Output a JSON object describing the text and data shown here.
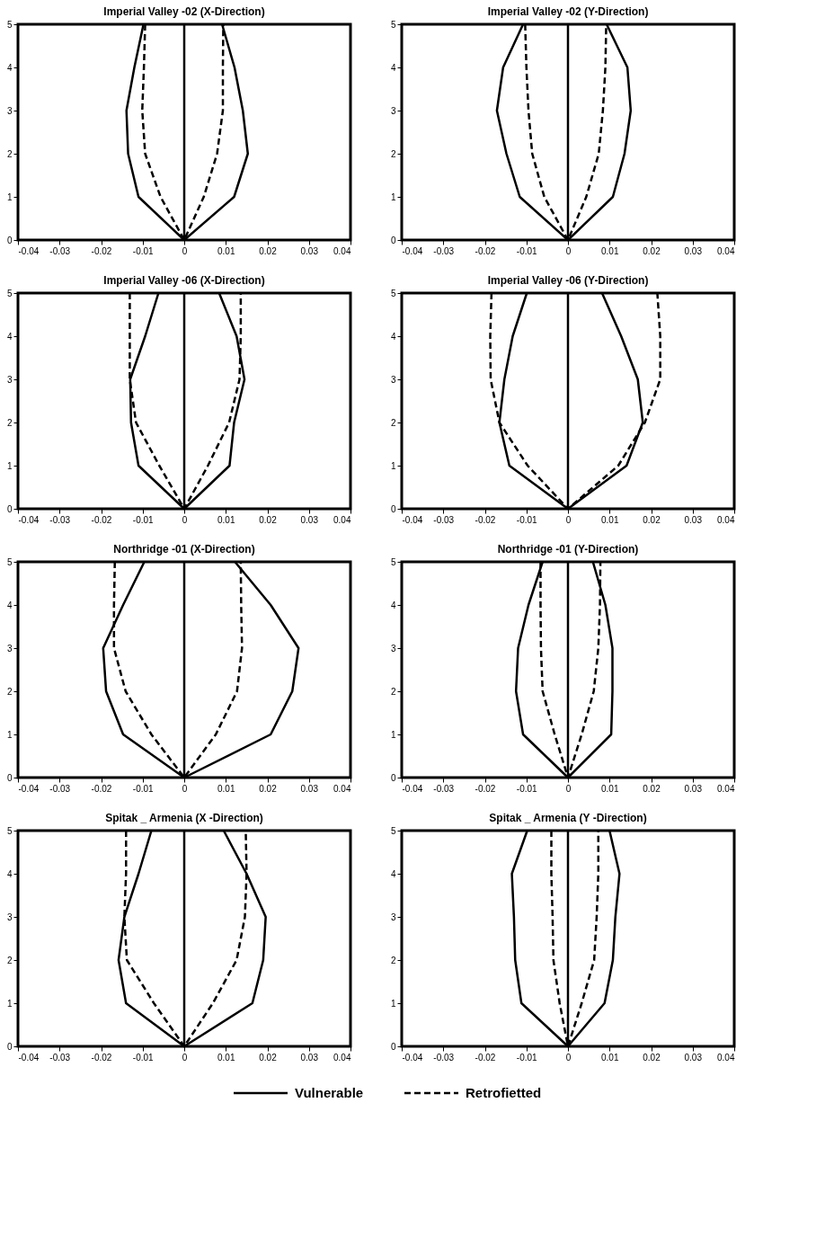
{
  "chart_data": [
    {
      "type": "line",
      "title": "Imperial Valley -02 (X-Direction)",
      "xlim": [
        -0.04,
        0.04
      ],
      "xticks": [
        -0.04,
        -0.03,
        -0.02,
        -0.01,
        0,
        0.01,
        0.02,
        0.03,
        0.04
      ],
      "ylim": [
        0,
        5
      ],
      "yticks": [
        0,
        1,
        2,
        3,
        4,
        5
      ],
      "grid": false,
      "legend": "bottom",
      "marker": "none",
      "ref_lines": [
        {
          "axis": "x",
          "value": 0,
          "label": null,
          "color": "#000000",
          "line_style": "solid"
        }
      ],
      "series": [
        {
          "name": "Vulnerable",
          "color": "#000000",
          "line_style": "solid",
          "x": [
            -0.0098,
            -0.012,
            -0.0139,
            -0.0135,
            -0.011,
            0,
            0.012,
            0.0153,
            0.0141,
            0.0121,
            0.0091
          ],
          "values": [
            5,
            4,
            3,
            2,
            1,
            0,
            1,
            2,
            3,
            4,
            5
          ]
        },
        {
          "name": "Retrofietted",
          "color": "#000000",
          "line_style": "dashed",
          "x": [
            -0.0094,
            -0.0097,
            -0.0101,
            -0.0094,
            -0.0057,
            0,
            0.0047,
            0.0079,
            0.0093,
            0.0093,
            0.0094
          ],
          "values": [
            5,
            4,
            3,
            2,
            1,
            0,
            1,
            2,
            3,
            4,
            5
          ]
        }
      ]
    },
    {
      "type": "line",
      "title": "Imperial Valley -02 (Y-Direction)",
      "xlim": [
        -0.04,
        0.04
      ],
      "xticks": [
        -0.04,
        -0.03,
        -0.02,
        -0.01,
        0,
        0.01,
        0.02,
        0.03,
        0.04
      ],
      "ylim": [
        0,
        5
      ],
      "yticks": [
        0,
        1,
        2,
        3,
        4,
        5
      ],
      "grid": false,
      "legend": false,
      "marker": "none",
      "ref_lines": [
        {
          "axis": "x",
          "value": 0,
          "label": null,
          "color": "#000000",
          "line_style": "solid"
        }
      ],
      "series": [
        {
          "color": "#000000",
          "line_style": "solid",
          "x": [
            -0.0108,
            -0.0156,
            -0.0171,
            -0.0148,
            -0.0116,
            0,
            0.0108,
            0.0136,
            0.0151,
            0.0143,
            0.0093
          ],
          "values": [
            5,
            4,
            3,
            2,
            1,
            0,
            1,
            2,
            3,
            4,
            5
          ]
        },
        {
          "color": "#000000",
          "line_style": "dashed",
          "x": [
            -0.0103,
            -0.01,
            -0.0095,
            -0.0086,
            -0.0057,
            0,
            0.0044,
            0.0074,
            0.0084,
            0.009,
            0.0092
          ],
          "values": [
            5,
            4,
            3,
            2,
            1,
            0,
            1,
            2,
            3,
            4,
            5
          ]
        }
      ]
    },
    {
      "type": "line",
      "title": "Imperial Valley -06 (X-Direction)",
      "xlim": [
        -0.04,
        0.04
      ],
      "xticks": [
        -0.04,
        -0.03,
        -0.02,
        -0.01,
        0,
        0.01,
        0.02,
        0.03,
        0.04
      ],
      "ylim": [
        0,
        5
      ],
      "yticks": [
        0,
        1,
        2,
        3,
        4,
        5
      ],
      "grid": false,
      "legend": false,
      "marker": "none",
      "ref_lines": [
        {
          "axis": "x",
          "value": 0,
          "label": null,
          "color": "#000000",
          "line_style": "solid"
        }
      ],
      "series": [
        {
          "color": "#000000",
          "line_style": "solid",
          "x": [
            -0.0062,
            -0.0094,
            -0.013,
            -0.0128,
            -0.011,
            0,
            0.0109,
            0.012,
            0.0145,
            0.0126,
            0.0084
          ],
          "values": [
            5,
            4,
            3,
            2,
            1,
            0,
            1,
            2,
            3,
            4,
            5
          ]
        },
        {
          "color": "#000000",
          "line_style": "dashed",
          "x": [
            -0.0131,
            -0.0131,
            -0.0131,
            -0.0116,
            -0.006,
            0,
            0.0057,
            0.0108,
            0.0133,
            0.0136,
            0.0136
          ],
          "values": [
            5,
            4,
            3,
            2,
            1,
            0,
            1,
            2,
            3,
            4,
            5
          ]
        }
      ]
    },
    {
      "type": "line",
      "title": "Imperial Valley -06 (Y-Direction)",
      "xlim": [
        -0.04,
        0.04
      ],
      "xticks": [
        -0.04,
        -0.03,
        -0.02,
        -0.01,
        0,
        0.01,
        0.02,
        0.03,
        0.04
      ],
      "ylim": [
        0,
        5
      ],
      "yticks": [
        0,
        1,
        2,
        3,
        4,
        5
      ],
      "grid": false,
      "legend": false,
      "marker": "none",
      "ref_lines": [
        {
          "axis": "x",
          "value": 0,
          "label": null,
          "color": "#000000",
          "line_style": "solid"
        }
      ],
      "series": [
        {
          "color": "#000000",
          "line_style": "solid",
          "x": [
            -0.0099,
            -0.0133,
            -0.0153,
            -0.0165,
            -0.0141,
            0,
            0.0141,
            0.018,
            0.0168,
            0.0128,
            0.0082
          ],
          "values": [
            5,
            4,
            3,
            2,
            1,
            0,
            1,
            2,
            3,
            4,
            5
          ]
        },
        {
          "color": "#000000",
          "line_style": "dashed",
          "x": [
            -0.0184,
            -0.0187,
            -0.0186,
            -0.0165,
            -0.0097,
            0,
            0.0121,
            0.0185,
            0.0222,
            0.0222,
            0.0215
          ],
          "values": [
            5,
            4,
            3,
            2,
            1,
            0,
            1,
            2,
            3,
            4,
            5
          ]
        }
      ]
    },
    {
      "type": "line",
      "title": "Northridge -01 (X-Direction)",
      "xlim": [
        -0.04,
        0.04
      ],
      "xticks": [
        -0.04,
        -0.03,
        -0.02,
        -0.01,
        0,
        0.01,
        0.02,
        0.03,
        0.04
      ],
      "ylim": [
        0,
        5
      ],
      "yticks": [
        0,
        1,
        2,
        3,
        4,
        5
      ],
      "grid": false,
      "legend": false,
      "marker": "none",
      "ref_lines": [
        {
          "axis": "x",
          "value": 0,
          "label": null,
          "color": "#000000",
          "line_style": "solid"
        }
      ],
      "series": [
        {
          "color": "#000000",
          "line_style": "solid",
          "x": [
            -0.0096,
            -0.0147,
            -0.0195,
            -0.0188,
            -0.0147,
            0,
            0.0208,
            0.026,
            0.0275,
            0.0208,
            0.0122
          ],
          "values": [
            5,
            4,
            3,
            2,
            1,
            0,
            1,
            2,
            3,
            4,
            5
          ]
        },
        {
          "color": "#000000",
          "line_style": "dashed",
          "x": [
            -0.0167,
            -0.0169,
            -0.0169,
            -0.0141,
            -0.0079,
            0,
            0.0076,
            0.0127,
            0.0139,
            0.0137,
            0.0136
          ],
          "values": [
            5,
            4,
            3,
            2,
            1,
            0,
            1,
            2,
            3,
            4,
            5
          ]
        }
      ]
    },
    {
      "type": "line",
      "title": "Northridge -01 (Y-Direction)",
      "xlim": [
        -0.04,
        0.04
      ],
      "xticks": [
        -0.04,
        -0.03,
        -0.02,
        -0.01,
        0,
        0.01,
        0.02,
        0.03,
        0.04
      ],
      "ylim": [
        0,
        5
      ],
      "yticks": [
        0,
        1,
        2,
        3,
        4,
        5
      ],
      "grid": false,
      "legend": false,
      "marker": "none",
      "ref_lines": [
        {
          "axis": "x",
          "value": 0,
          "label": null,
          "color": "#000000",
          "line_style": "solid"
        }
      ],
      "series": [
        {
          "color": "#000000",
          "line_style": "solid",
          "x": [
            -0.0061,
            -0.0095,
            -0.012,
            -0.0125,
            -0.0108,
            0,
            0.0104,
            0.0107,
            0.0107,
            0.009,
            0.006
          ],
          "values": [
            5,
            4,
            3,
            2,
            1,
            0,
            1,
            2,
            3,
            4,
            5
          ]
        },
        {
          "color": "#000000",
          "line_style": "dashed",
          "x": [
            -0.0066,
            -0.0066,
            -0.0065,
            -0.0061,
            -0.0032,
            0,
            0.0033,
            0.0062,
            0.0073,
            0.0077,
            0.0078
          ],
          "values": [
            5,
            4,
            3,
            2,
            1,
            0,
            1,
            2,
            3,
            4,
            5
          ]
        }
      ]
    },
    {
      "type": "line",
      "title": "Spitak _ Armenia (X -Direction)",
      "xlim": [
        -0.04,
        0.04
      ],
      "xticks": [
        -0.04,
        -0.03,
        -0.02,
        -0.01,
        0,
        0.01,
        0.02,
        0.03,
        0.04
      ],
      "ylim": [
        0,
        5
      ],
      "yticks": [
        0,
        1,
        2,
        3,
        4,
        5
      ],
      "grid": false,
      "legend": false,
      "marker": "none",
      "ref_lines": [
        {
          "axis": "x",
          "value": 0,
          "label": null,
          "color": "#000000",
          "line_style": "solid"
        }
      ],
      "series": [
        {
          "color": "#000000",
          "line_style": "solid",
          "x": [
            -0.0079,
            -0.011,
            -0.0144,
            -0.0158,
            -0.014,
            0,
            0.0164,
            0.019,
            0.0196,
            0.015,
            0.0095
          ],
          "values": [
            5,
            4,
            3,
            2,
            1,
            0,
            1,
            2,
            3,
            4,
            5
          ]
        },
        {
          "color": "#000000",
          "line_style": "dashed",
          "x": [
            -0.014,
            -0.014,
            -0.0144,
            -0.0138,
            -0.0073,
            0,
            0.0069,
            0.0126,
            0.0146,
            0.015,
            0.0148
          ],
          "values": [
            5,
            4,
            3,
            2,
            1,
            0,
            1,
            2,
            3,
            4,
            5
          ]
        }
      ]
    },
    {
      "type": "line",
      "title": "Spitak _ Armenia (Y -Direction)",
      "xlim": [
        -0.04,
        0.04
      ],
      "xticks": [
        -0.04,
        -0.03,
        -0.02,
        -0.01,
        0,
        0.01,
        0.02,
        0.03,
        0.04
      ],
      "ylim": [
        0,
        5
      ],
      "yticks": [
        0,
        1,
        2,
        3,
        4,
        5
      ],
      "grid": false,
      "legend": false,
      "marker": "none",
      "ref_lines": [
        {
          "axis": "x",
          "value": 0,
          "label": null,
          "color": "#000000",
          "line_style": "solid"
        }
      ],
      "series": [
        {
          "color": "#000000",
          "line_style": "solid",
          "x": [
            -0.0098,
            -0.0135,
            -0.013,
            -0.0127,
            -0.0112,
            0,
            0.0088,
            0.0108,
            0.0114,
            0.0124,
            0.01
          ],
          "values": [
            5,
            4,
            3,
            2,
            1,
            0,
            1,
            2,
            3,
            4,
            5
          ]
        },
        {
          "color": "#000000",
          "line_style": "dashed",
          "x": [
            -0.004,
            -0.004,
            -0.0037,
            -0.0035,
            -0.002,
            0,
            0.0033,
            0.0063,
            0.0069,
            0.0073,
            0.0073
          ],
          "values": [
            5,
            4,
            3,
            2,
            1,
            0,
            1,
            2,
            3,
            4,
            5
          ]
        }
      ]
    }
  ]
}
